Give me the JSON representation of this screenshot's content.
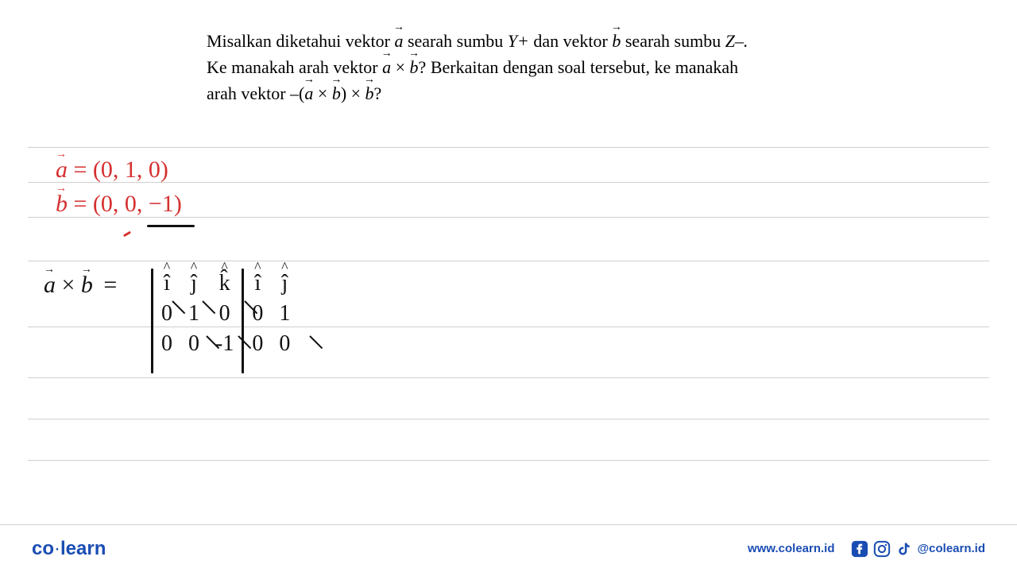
{
  "question": {
    "line1_pre": "Misalkan diketahui vektor ",
    "a": "a",
    "line1_mid": " searah sumbu ",
    "yplus": "Y+",
    "line1_mid2": " dan vektor ",
    "b": "b",
    "line1_end": " searah sumbu ",
    "zminus": "Z–.",
    "line2_pre": "Ke manakah arah vektor ",
    "cross": " × ",
    "qmark": "?",
    "line2_mid": " Berkaitan dengan soal tersebut, ke manakah",
    "line3_pre": "arah vektor –(",
    "line3_mid": ") × ",
    "line3_end": "?"
  },
  "handwriting": {
    "vec_a_label": "a",
    "vec_a_eq": "= (0, 1, 0)",
    "vec_b_label": "b",
    "vec_b_eq": "= (0, 0, −1)",
    "axb_label_a": "a",
    "axb_label_x": "×",
    "axb_label_b": "b",
    "axb_eq": "=",
    "headers": [
      "î",
      "ĵ",
      "k̂",
      "î",
      "ĵ"
    ],
    "row1": [
      "0",
      "1",
      "0",
      "0",
      "1"
    ],
    "row2": [
      "0",
      "0",
      "-1",
      "0",
      "0"
    ]
  },
  "footer": {
    "logo_co": "co",
    "logo_learn": "learn",
    "url": "www.colearn.id",
    "handle": "@colearn.id"
  },
  "style": {
    "question_fontsize": 22,
    "question_color": "#000000",
    "red": "#d63030",
    "black": "#111111",
    "rule_color": "#d0d0d0",
    "brand_color": "#1a4db3",
    "background": "#ffffff",
    "hw_fontsize_red": 30,
    "hw_fontsize_black": 28,
    "ruled_line_positions": [
      185,
      229,
      273,
      328,
      411,
      475,
      527,
      579
    ]
  }
}
